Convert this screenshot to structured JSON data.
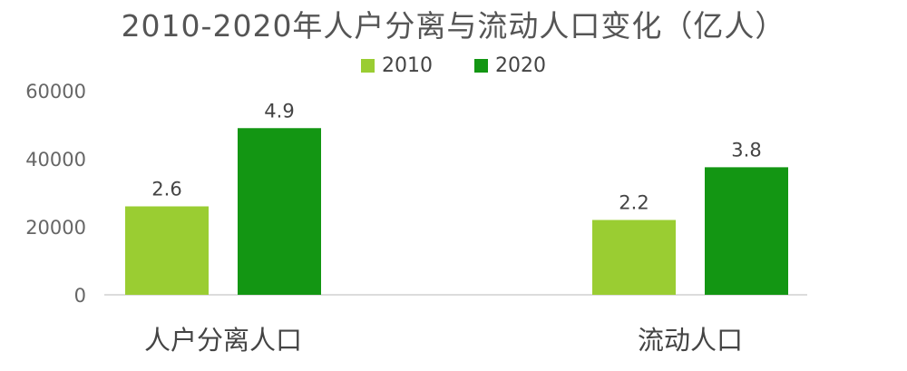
{
  "chart_data": {
    "type": "bar",
    "title": "2010-2020年人户分离与流动人口变化（亿人）",
    "xlabel": "",
    "ylabel": "",
    "categories": [
      "人户分离人口",
      "流动人口"
    ],
    "series": [
      {
        "name": "2010",
        "values": [
          26000,
          22000
        ],
        "labels": [
          "2.6",
          "2.2"
        ],
        "color": "#9acd32"
      },
      {
        "name": "2020",
        "values": [
          49000,
          37500
        ],
        "labels": [
          "4.9",
          "3.8"
        ],
        "color": "#139613"
      }
    ],
    "yticks": [
      0,
      20000,
      40000,
      60000
    ],
    "ylim": [
      0,
      60000
    ],
    "grid": false,
    "legend": "top-center"
  }
}
